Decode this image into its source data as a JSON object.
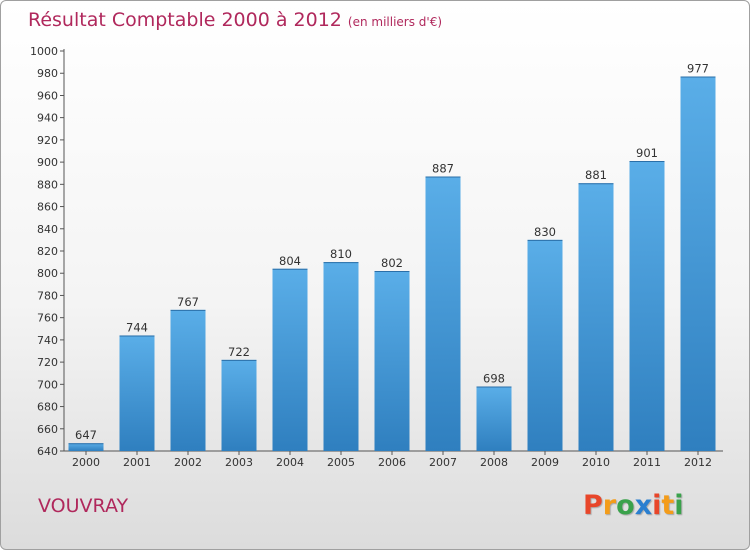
{
  "header": {
    "title": "Résultat Comptable 2000 à 2012",
    "subtitle": "(en milliers d'€)"
  },
  "footer": {
    "city": "VOUVRAY",
    "logo": "Proxiti"
  },
  "colors": {
    "title": "#b0285c",
    "bar_top": "#5aaee8",
    "bar_bottom": "#2f7fbf",
    "logo_letters": [
      "#e8462a",
      "#f39c1a",
      "#3aa24b",
      "#2a7fd0",
      "#e8462a",
      "#f39c1a",
      "#3aa24b"
    ]
  },
  "chart_data": {
    "type": "bar",
    "title": "Résultat Comptable 2000 à 2012",
    "subtitle": "(en milliers d'€)",
    "categories": [
      "2000",
      "2001",
      "2002",
      "2003",
      "2004",
      "2005",
      "2006",
      "2007",
      "2008",
      "2009",
      "2010",
      "2011",
      "2012"
    ],
    "values": [
      647,
      744,
      767,
      722,
      804,
      810,
      802,
      887,
      698,
      830,
      881,
      901,
      977
    ],
    "value_labels": [
      "647",
      "744",
      "767",
      "722",
      "804",
      "810",
      "802",
      "887",
      "698",
      "830",
      "881",
      "901",
      "977"
    ],
    "xlabel": "",
    "ylabel": "",
    "ylim": [
      640,
      1000
    ],
    "ytick_step": 20,
    "yticks": [
      "640",
      "660",
      "680",
      "700",
      "720",
      "740",
      "760",
      "780",
      "800",
      "820",
      "840",
      "860",
      "880",
      "900",
      "920",
      "940",
      "960",
      "980",
      "1000"
    ],
    "grid": false
  }
}
